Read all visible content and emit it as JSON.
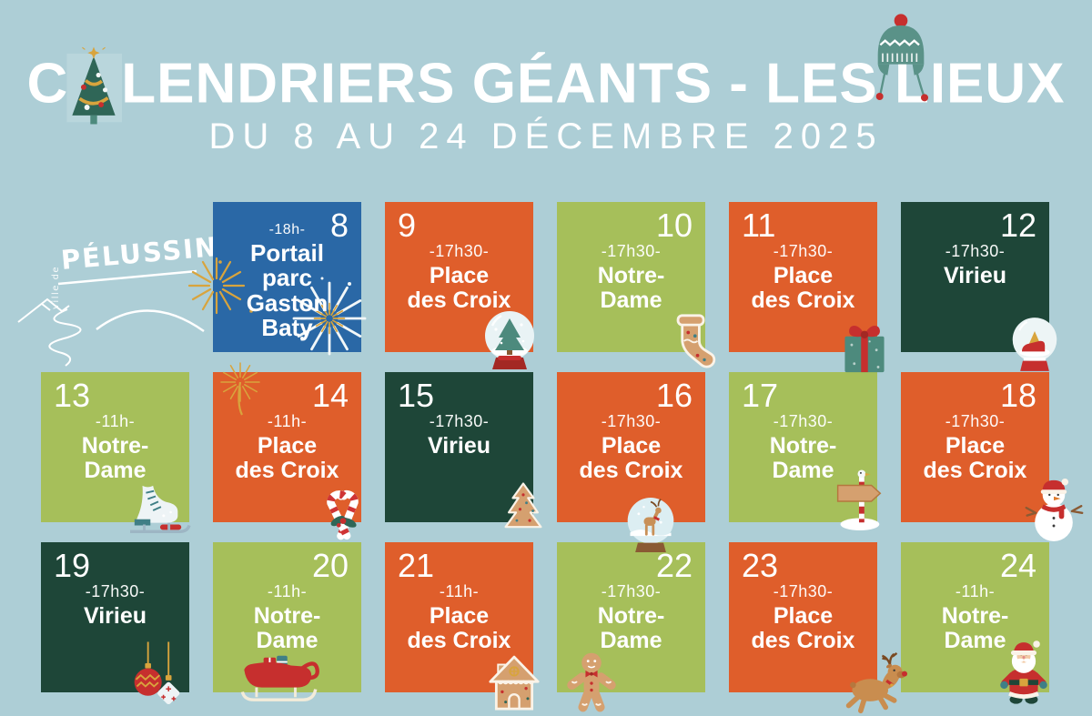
{
  "poster": {
    "title": {
      "prefix": "C",
      "rest": "LENDRIERS GÉANTS - LES LIEUX",
      "full": "CALENDRIERS GÉANTS - LES LIEUX"
    },
    "subtitle": "DU 8 AU 24 DÉCEMBRE 2025",
    "logo": {
      "small_text": "ville de",
      "name": "PÉLUSSIN"
    },
    "colors": {
      "background": "#adced6",
      "blue": "#2a68a6",
      "orange": "#df5e2b",
      "green": "#a6bf5a",
      "dark_green": "#1e4638",
      "white": "#ffffff",
      "red": "#c62f2e",
      "teal": "#4d8a7d",
      "gold": "#d8a43d",
      "tan": "#d5a06f"
    }
  },
  "calendar": {
    "days": [
      {
        "day": "8",
        "time": "-18h-",
        "place_lines": [
          "Portail",
          "parc",
          "Gaston",
          "Baty"
        ],
        "color": "blue",
        "number_side": "right",
        "decoration": "fireworks"
      },
      {
        "day": "9",
        "time": "-17h30-",
        "place_lines": [
          "Place",
          "des Croix"
        ],
        "color": "orange",
        "number_side": "left",
        "decoration": "snow-globe-tree"
      },
      {
        "day": "10",
        "time": "-17h30-",
        "place_lines": [
          "Notre-",
          "Dame"
        ],
        "color": "green",
        "number_side": "right",
        "decoration": "gingerbread-stocking"
      },
      {
        "day": "11",
        "time": "-17h30-",
        "place_lines": [
          "Place",
          "des Croix"
        ],
        "color": "orange",
        "number_side": "left",
        "decoration": "gift"
      },
      {
        "day": "12",
        "time": "-17h30-",
        "place_lines": [
          "Virieu"
        ],
        "color": "dark",
        "number_side": "right",
        "decoration": "snow-globe-sleigh"
      },
      {
        "day": "13",
        "time": "-11h-",
        "place_lines": [
          "Notre-",
          "Dame"
        ],
        "color": "green",
        "number_side": "left",
        "decoration": "ice-skate"
      },
      {
        "day": "14",
        "time": "-11h-",
        "place_lines": [
          "Place",
          "des Croix"
        ],
        "color": "orange",
        "number_side": "right",
        "decoration": "candy-canes"
      },
      {
        "day": "15",
        "time": "-17h30-",
        "place_lines": [
          "Virieu"
        ],
        "color": "dark",
        "number_side": "left",
        "decoration": "gingerbread-tree"
      },
      {
        "day": "16",
        "time": "-17h30-",
        "place_lines": [
          "Place",
          "des Croix"
        ],
        "color": "orange",
        "number_side": "right",
        "decoration": "snow-globe-reindeer"
      },
      {
        "day": "17",
        "time": "-17h30-",
        "place_lines": [
          "Notre-",
          "Dame"
        ],
        "color": "green",
        "number_side": "left",
        "decoration": "signpost"
      },
      {
        "day": "18",
        "time": "-17h30-",
        "place_lines": [
          "Place",
          "des Croix"
        ],
        "color": "orange",
        "number_side": "right",
        "decoration": "snowman"
      },
      {
        "day": "19",
        "time": "-17h30-",
        "place_lines": [
          "Virieu"
        ],
        "color": "dark",
        "number_side": "left",
        "decoration": "baubles"
      },
      {
        "day": "20",
        "time": "-11h-",
        "place_lines": [
          "Notre-",
          "Dame"
        ],
        "color": "green",
        "number_side": "right",
        "decoration": "sleigh"
      },
      {
        "day": "21",
        "time": "-11h-",
        "place_lines": [
          "Place",
          "des Croix"
        ],
        "color": "orange",
        "number_side": "left",
        "decoration": "gingerbread-house"
      },
      {
        "day": "22",
        "time": "-17h30-",
        "place_lines": [
          "Notre-",
          "Dame"
        ],
        "color": "green",
        "number_side": "right",
        "decoration": "gingerbread-man"
      },
      {
        "day": "23",
        "time": "-17h30-",
        "place_lines": [
          "Place",
          "des Croix"
        ],
        "color": "orange",
        "number_side": "left",
        "decoration": "reindeer"
      },
      {
        "day": "24",
        "time": "-11h-",
        "place_lines": [
          "Notre-",
          "Dame"
        ],
        "color": "green",
        "number_side": "right",
        "decoration": "santa"
      }
    ]
  }
}
